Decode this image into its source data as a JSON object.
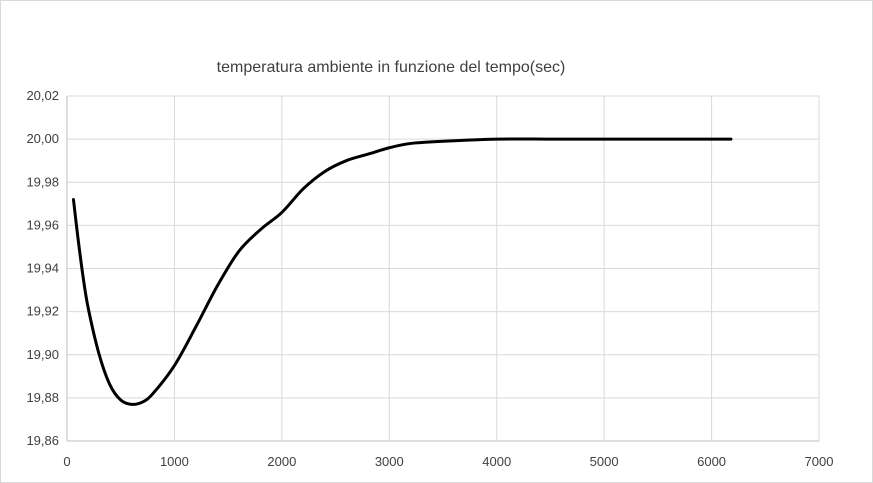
{
  "chart_data": {
    "type": "line",
    "title": "temperatura ambiente in funzione del tempo(sec)",
    "xlabel": "",
    "ylabel": "",
    "xlim": [
      0,
      7000
    ],
    "ylim": [
      19.86,
      20.02
    ],
    "x_ticks": [
      0,
      1000,
      2000,
      3000,
      4000,
      5000,
      6000,
      7000
    ],
    "y_ticks": [
      "19,86",
      "19,88",
      "19,90",
      "19,92",
      "19,94",
      "19,96",
      "19,98",
      "20,00",
      "20,02"
    ],
    "grid": true,
    "legend": "none",
    "series": [
      {
        "color": "#000000",
        "x": [
          60,
          100,
          150,
          200,
          300,
          400,
          500,
          600,
          700,
          800,
          1000,
          1200,
          1400,
          1600,
          1800,
          2000,
          2200,
          2400,
          2600,
          2800,
          3000,
          3200,
          3500,
          4000,
          4500,
          5000,
          5500,
          6000,
          6180
        ],
        "y": [
          19.972,
          19.955,
          19.936,
          19.921,
          19.9,
          19.886,
          19.879,
          19.877,
          19.878,
          19.882,
          19.895,
          19.913,
          19.932,
          19.948,
          19.958,
          19.966,
          19.977,
          19.985,
          19.99,
          19.993,
          19.996,
          19.998,
          19.999,
          20.0,
          20.0,
          20.0,
          20.0,
          20.0,
          20.0
        ]
      }
    ]
  }
}
